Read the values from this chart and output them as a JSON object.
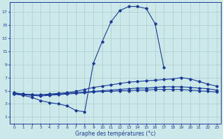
{
  "background_color": "#cce8e8",
  "grid_color": "#aacccc",
  "line_color": "#1a3a9a",
  "x_hours": [
    0,
    1,
    2,
    3,
    4,
    5,
    6,
    7,
    8,
    9,
    10,
    11,
    12,
    13,
    14,
    15,
    16,
    17,
    18,
    19,
    20,
    21,
    22,
    23
  ],
  "line_max": [
    4.5,
    4.3,
    4.0,
    3.5,
    3.2,
    3.0,
    2.7,
    2.0,
    1.8,
    9.2,
    12.5,
    15.5,
    17.2,
    17.8,
    17.8,
    17.5,
    15.2,
    8.5,
    null,
    null,
    null,
    null,
    null,
    null
  ],
  "line_upper": [
    4.7,
    4.5,
    4.4,
    4.4,
    4.5,
    4.6,
    4.7,
    4.9,
    5.2,
    5.5,
    5.7,
    5.9,
    6.1,
    6.3,
    6.4,
    6.5,
    6.6,
    6.7,
    6.8,
    7.0,
    6.8,
    6.4,
    6.0,
    5.7
  ],
  "line_mid": [
    4.6,
    4.5,
    4.4,
    4.3,
    4.4,
    4.5,
    4.6,
    4.7,
    4.8,
    4.9,
    5.0,
    5.1,
    5.2,
    5.3,
    5.4,
    5.4,
    5.5,
    5.6,
    5.6,
    5.6,
    5.5,
    5.4,
    5.3,
    5.1
  ],
  "line_min": [
    4.5,
    4.4,
    4.3,
    4.2,
    4.3,
    4.4,
    4.5,
    4.6,
    4.7,
    4.8,
    4.9,
    4.9,
    5.0,
    5.0,
    5.1,
    5.1,
    5.2,
    5.2,
    5.2,
    5.2,
    5.1,
    5.0,
    4.9,
    4.8
  ],
  "ylabel_ticks": [
    1,
    3,
    5,
    7,
    9,
    11,
    13,
    15,
    17
  ],
  "xlabel": "Graphe des températures (°c)",
  "ylim": [
    0,
    18.5
  ],
  "xlim": [
    -0.5,
    23.5
  ]
}
